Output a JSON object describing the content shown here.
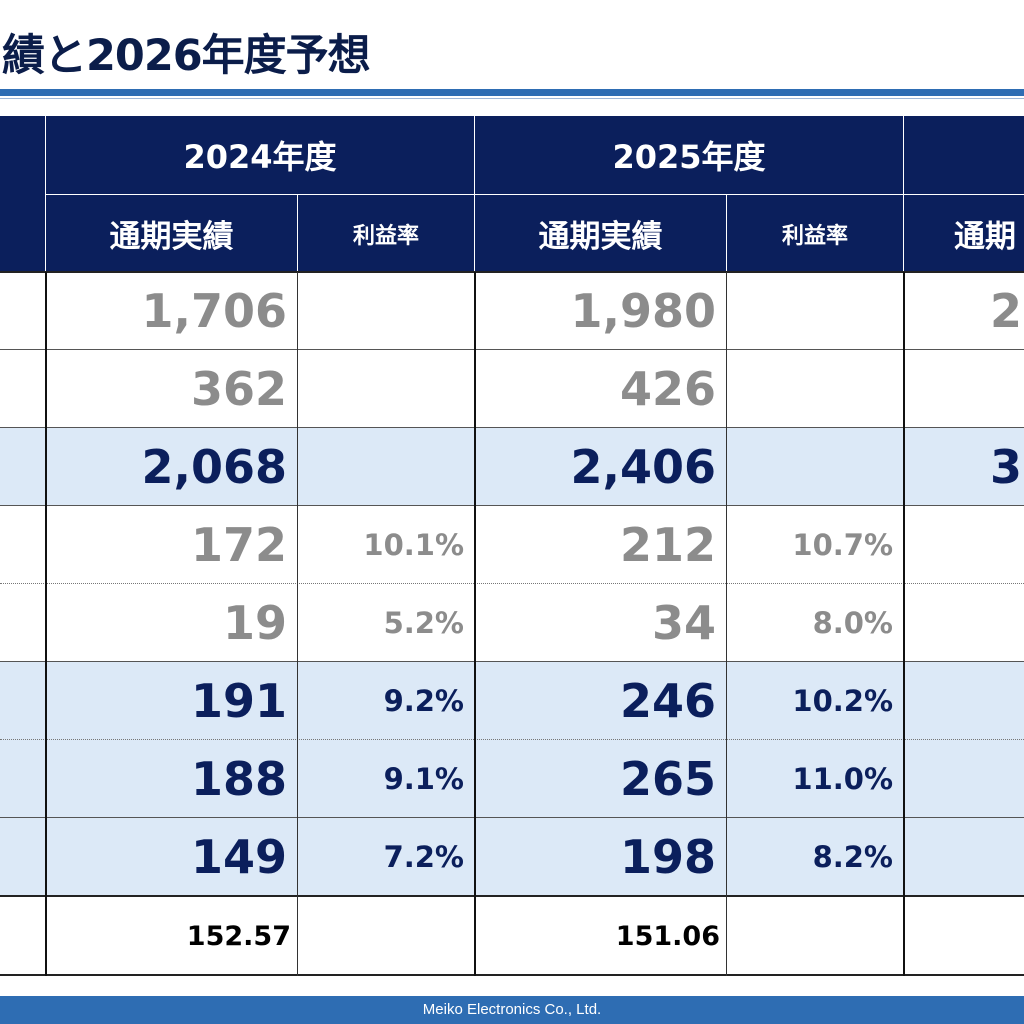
{
  "title": "績と2026年度予想",
  "header": {
    "years": [
      "2024年度",
      "2025年度"
    ],
    "sub_labels": [
      "通期実績",
      "利益率",
      "通期実績",
      "利益率",
      "通期"
    ]
  },
  "rows": [
    {
      "v2024": "1,706",
      "r2024": "",
      "v2025": "1,980",
      "r2025": "",
      "v2026": "2"
    },
    {
      "v2024": "362",
      "r2024": "",
      "v2025": "426",
      "r2025": "",
      "v2026": ""
    },
    {
      "v2024": "2,068",
      "r2024": "",
      "v2025": "2,406",
      "r2025": "",
      "v2026": "3"
    },
    {
      "v2024": "172",
      "r2024": "10.1%",
      "v2025": "212",
      "r2025": "10.7%",
      "v2026": ""
    },
    {
      "v2024": "19",
      "r2024": "5.2%",
      "v2025": "34",
      "r2025": "8.0%",
      "v2026": ""
    },
    {
      "v2024": "191",
      "r2024": "9.2%",
      "v2025": "246",
      "r2025": "10.2%",
      "v2026": ""
    },
    {
      "v2024": "188",
      "r2024": "9.1%",
      "v2025": "265",
      "r2025": "11.0%",
      "v2026": ""
    },
    {
      "v2024": "149",
      "r2024": "7.2%",
      "v2025": "198",
      "r2025": "8.2%",
      "v2026": ""
    },
    {
      "v2024": "152.57",
      "r2024": "",
      "v2025": "151.06",
      "r2025": "",
      "v2026": ""
    }
  ],
  "footer": "Meiko Electronics Co., Ltd.",
  "colors": {
    "header_bg": "#0b1f5c",
    "accent_blue": "#2e6db3",
    "highlight_row": "#dce9f7",
    "gray_text": "#8c8c8c",
    "navy_text": "#0b1f5c"
  }
}
